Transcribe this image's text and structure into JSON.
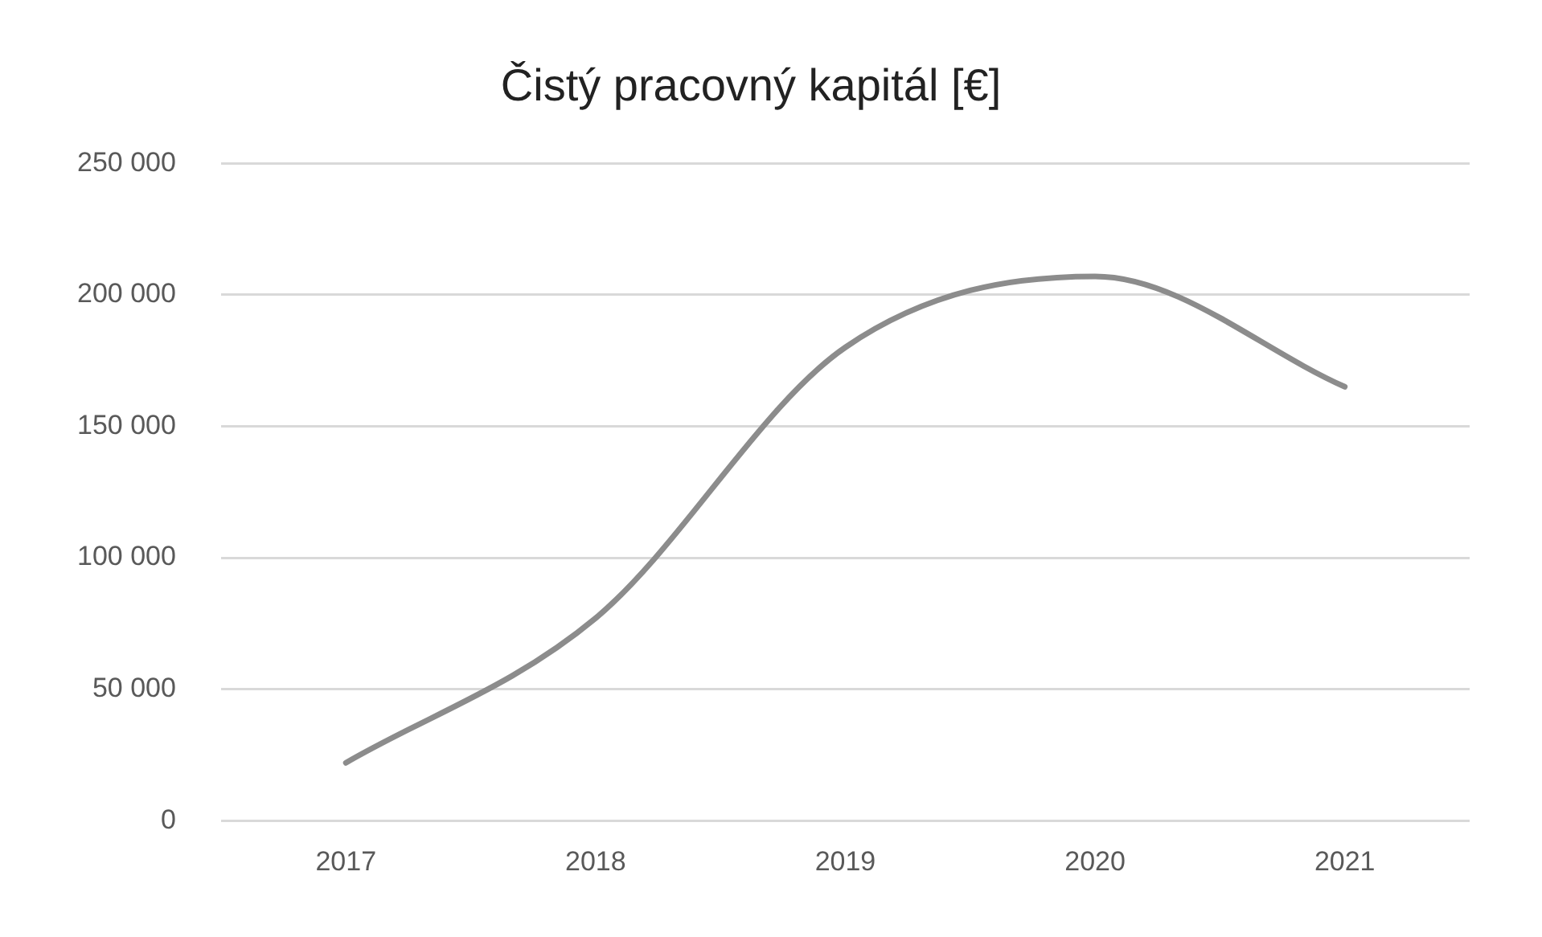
{
  "chart_data": {
    "type": "line",
    "title": "Čistý pracovný kapitál [€]",
    "categories": [
      "2017",
      "2018",
      "2019",
      "2020",
      "2021"
    ],
    "series": [
      {
        "color": "#8c8c8c",
        "values": [
          22000,
          77000,
          180000,
          207000,
          165000
        ]
      }
    ],
    "ylim": [
      0,
      250000
    ],
    "yticks": [
      {
        "value": 0,
        "label": "0"
      },
      {
        "value": 50000,
        "label": "50 000"
      },
      {
        "value": 100000,
        "label": "100 000"
      },
      {
        "value": 150000,
        "label": "150 000"
      },
      {
        "value": 200000,
        "label": "200 000"
      },
      {
        "value": 250000,
        "label": "250 000"
      }
    ],
    "grid": "y",
    "legend": false,
    "marker": "none",
    "line_style": "solid"
  }
}
